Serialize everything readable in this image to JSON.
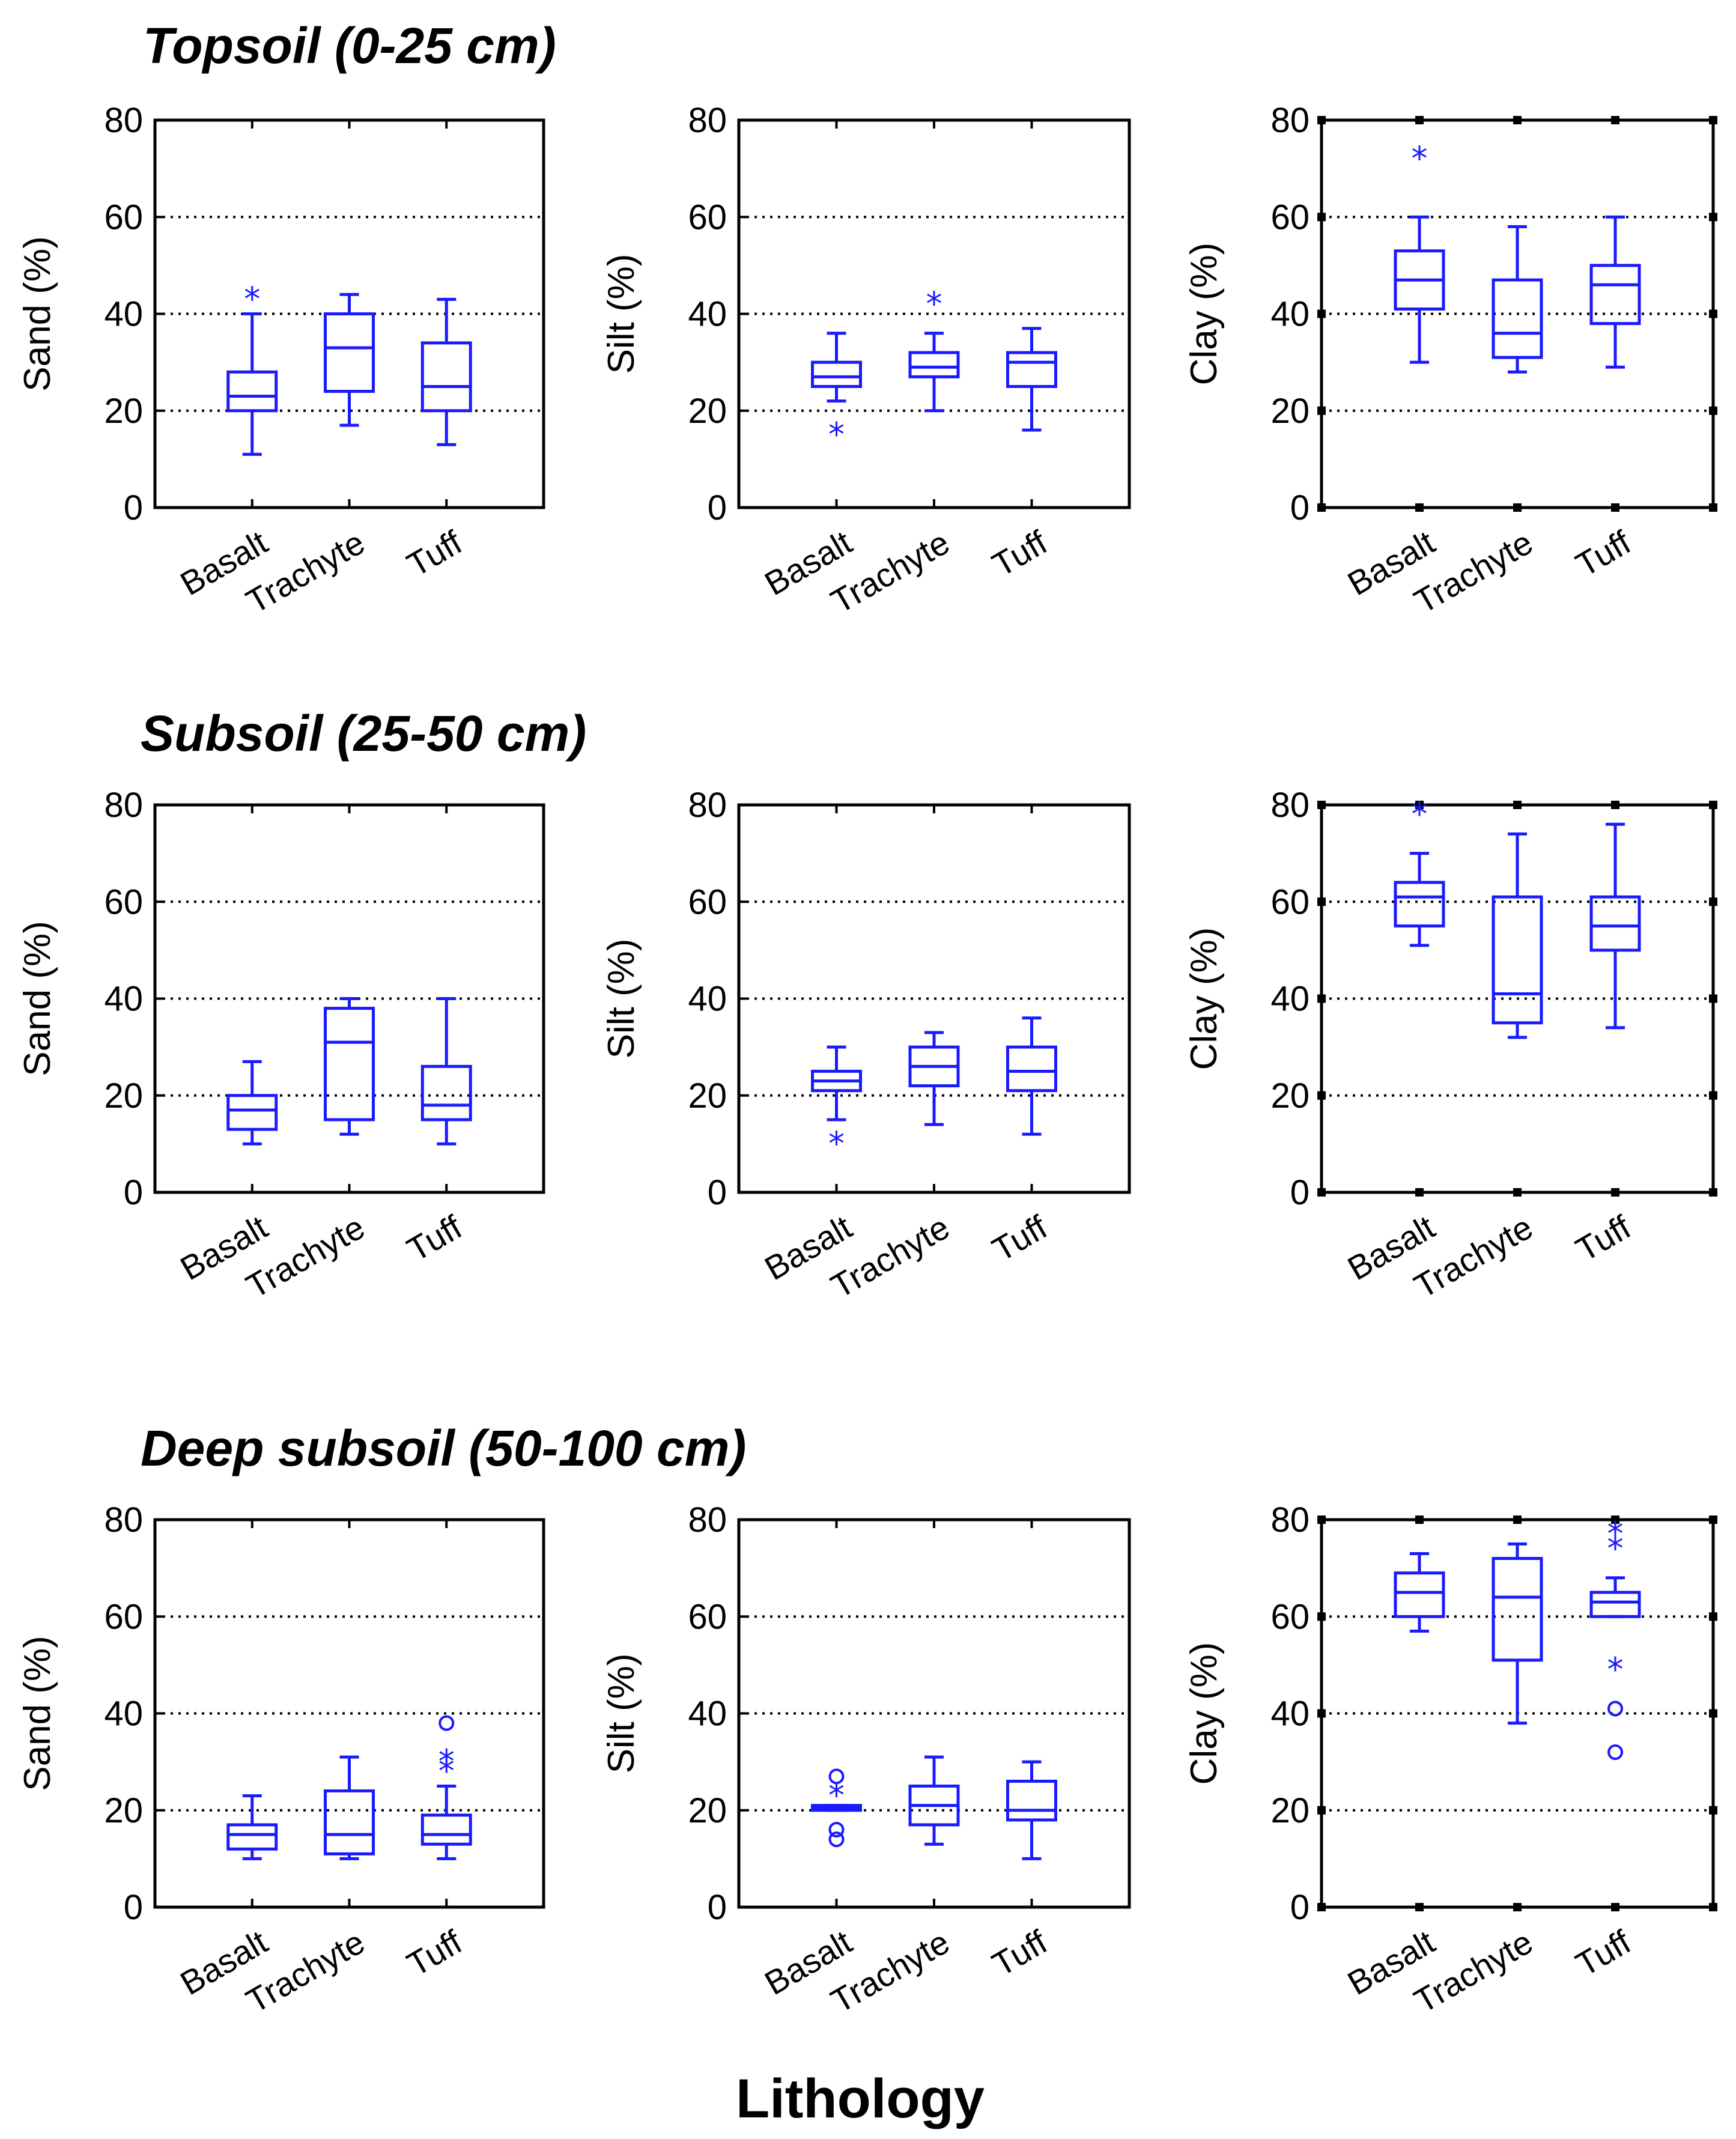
{
  "figure": {
    "x_axis_title": "Lithology",
    "sections": [
      {
        "title": "Topsoil (0-25 cm)"
      },
      {
        "title": "Subsoil (25-50 cm)"
      },
      {
        "title": "Deep subsoil (50-100 cm)"
      }
    ]
  },
  "chart_data": [
    {
      "type": "box",
      "section": "Topsoil (0-25 cm)",
      "ylabel": "Sand (%)",
      "ylim": [
        0,
        80
      ],
      "yticks": [
        0,
        20,
        40,
        60,
        80
      ],
      "grid": "dotted",
      "categories": [
        "Basalt",
        "Trachyte",
        "Tuff"
      ],
      "boxes": [
        {
          "min": 11,
          "q1": 20,
          "median": 23,
          "q3": 28,
          "max": 40,
          "outliers": [
            {
              "v": 44,
              "m": "*"
            }
          ]
        },
        {
          "min": 17,
          "q1": 24,
          "median": 33,
          "q3": 40,
          "max": 44,
          "outliers": []
        },
        {
          "min": 13,
          "q1": 20,
          "median": 25,
          "q3": 34,
          "max": 43,
          "outliers": []
        }
      ]
    },
    {
      "type": "box",
      "section": "Topsoil (0-25 cm)",
      "ylabel": "Silt (%)",
      "ylim": [
        0,
        80
      ],
      "yticks": [
        0,
        20,
        40,
        60,
        80
      ],
      "grid": "dotted",
      "categories": [
        "Basalt",
        "Trachyte",
        "Tuff"
      ],
      "boxes": [
        {
          "min": 22,
          "q1": 25,
          "median": 27,
          "q3": 30,
          "max": 36,
          "outliers": [
            {
              "v": 16,
              "m": "*"
            }
          ]
        },
        {
          "min": 20,
          "q1": 27,
          "median": 29,
          "q3": 32,
          "max": 36,
          "outliers": [
            {
              "v": 43,
              "m": "*"
            }
          ]
        },
        {
          "min": 16,
          "q1": 25,
          "median": 30,
          "q3": 32,
          "max": 37,
          "outliers": []
        }
      ]
    },
    {
      "type": "box",
      "section": "Topsoil (0-25 cm)",
      "ylabel": "Clay (%)",
      "ylim": [
        0,
        80
      ],
      "yticks": [
        0,
        20,
        40,
        60,
        80
      ],
      "grid": "dotted",
      "categories": [
        "Basalt",
        "Trachyte",
        "Tuff"
      ],
      "boxes": [
        {
          "min": 30,
          "q1": 41,
          "median": 47,
          "q3": 53,
          "max": 60,
          "outliers": [
            {
              "v": 73,
              "m": "*"
            }
          ]
        },
        {
          "min": 28,
          "q1": 31,
          "median": 36,
          "q3": 47,
          "max": 58,
          "outliers": []
        },
        {
          "min": 29,
          "q1": 38,
          "median": 46,
          "q3": 50,
          "max": 60,
          "outliers": []
        }
      ]
    },
    {
      "type": "box",
      "section": "Subsoil (25-50 cm)",
      "ylabel": "Sand (%)",
      "ylim": [
        0,
        80
      ],
      "yticks": [
        0,
        20,
        40,
        60,
        80
      ],
      "grid": "dotted",
      "categories": [
        "Basalt",
        "Trachyte",
        "Tuff"
      ],
      "boxes": [
        {
          "min": 10,
          "q1": 13,
          "median": 17,
          "q3": 20,
          "max": 27,
          "outliers": []
        },
        {
          "min": 12,
          "q1": 15,
          "median": 31,
          "q3": 38,
          "max": 40,
          "outliers": []
        },
        {
          "min": 10,
          "q1": 15,
          "median": 18,
          "q3": 26,
          "max": 40,
          "outliers": []
        }
      ]
    },
    {
      "type": "box",
      "section": "Subsoil (25-50 cm)",
      "ylabel": "Silt (%)",
      "ylim": [
        0,
        80
      ],
      "yticks": [
        0,
        20,
        40,
        60,
        80
      ],
      "grid": "dotted",
      "categories": [
        "Basalt",
        "Trachyte",
        "Tuff"
      ],
      "boxes": [
        {
          "min": 15,
          "q1": 21,
          "median": 23,
          "q3": 25,
          "max": 30,
          "outliers": [
            {
              "v": 11,
              "m": "*"
            }
          ]
        },
        {
          "min": 14,
          "q1": 22,
          "median": 26,
          "q3": 30,
          "max": 33,
          "outliers": []
        },
        {
          "min": 12,
          "q1": 21,
          "median": 25,
          "q3": 30,
          "max": 36,
          "outliers": []
        }
      ]
    },
    {
      "type": "box",
      "section": "Subsoil (25-50 cm)",
      "ylabel": "Clay (%)",
      "ylim": [
        0,
        80
      ],
      "yticks": [
        0,
        20,
        40,
        60,
        80
      ],
      "grid": "dotted",
      "categories": [
        "Basalt",
        "Trachyte",
        "Tuff"
      ],
      "boxes": [
        {
          "min": 51,
          "q1": 55,
          "median": 61,
          "q3": 64,
          "max": 70,
          "outliers": [
            {
              "v": 79,
              "m": "*"
            }
          ]
        },
        {
          "min": 32,
          "q1": 35,
          "median": 41,
          "q3": 61,
          "max": 74,
          "outliers": []
        },
        {
          "min": 34,
          "q1": 50,
          "median": 55,
          "q3": 61,
          "max": 76,
          "outliers": []
        }
      ]
    },
    {
      "type": "box",
      "section": "Deep subsoil (50-100 cm)",
      "ylabel": "Sand (%)",
      "ylim": [
        0,
        80
      ],
      "yticks": [
        0,
        20,
        40,
        60,
        80
      ],
      "grid": "dotted",
      "categories": [
        "Basalt",
        "Trachyte",
        "Tuff"
      ],
      "boxes": [
        {
          "min": 10,
          "q1": 12,
          "median": 15,
          "q3": 17,
          "max": 23,
          "outliers": []
        },
        {
          "min": 10,
          "q1": 11,
          "median": 15,
          "q3": 24,
          "max": 31,
          "outliers": []
        },
        {
          "min": 10,
          "q1": 13,
          "median": 15,
          "q3": 19,
          "max": 25,
          "outliers": [
            {
              "v": 29,
              "m": "*"
            },
            {
              "v": 31,
              "m": "*"
            },
            {
              "v": 38,
              "m": "o"
            }
          ]
        }
      ]
    },
    {
      "type": "box",
      "section": "Deep subsoil (50-100 cm)",
      "ylabel": "Silt (%)",
      "ylim": [
        0,
        80
      ],
      "yticks": [
        0,
        20,
        40,
        60,
        80
      ],
      "grid": "dotted",
      "categories": [
        "Basalt",
        "Trachyte",
        "Tuff"
      ],
      "boxes": [
        {
          "min": 20,
          "q1": 20,
          "median": 20.5,
          "q3": 21,
          "max": 21,
          "outliers": [
            {
              "v": 14,
              "m": "o"
            },
            {
              "v": 16,
              "m": "o"
            },
            {
              "v": 24,
              "m": "*"
            },
            {
              "v": 27,
              "m": "o"
            }
          ]
        },
        {
          "min": 13,
          "q1": 17,
          "median": 21,
          "q3": 25,
          "max": 31,
          "outliers": []
        },
        {
          "min": 10,
          "q1": 18,
          "median": 20,
          "q3": 26,
          "max": 30,
          "outliers": []
        }
      ]
    },
    {
      "type": "box",
      "section": "Deep subsoil (50-100 cm)",
      "ylabel": "Clay (%)",
      "ylim": [
        0,
        80
      ],
      "yticks": [
        0,
        20,
        40,
        60,
        80
      ],
      "grid": "dotted",
      "categories": [
        "Basalt",
        "Trachyte",
        "Tuff"
      ],
      "boxes": [
        {
          "min": 57,
          "q1": 60,
          "median": 65,
          "q3": 69,
          "max": 73,
          "outliers": []
        },
        {
          "min": 38,
          "q1": 51,
          "median": 64,
          "q3": 72,
          "max": 75,
          "outliers": []
        },
        {
          "min": 60,
          "q1": 60,
          "median": 63,
          "q3": 65,
          "max": 68,
          "outliers": [
            {
              "v": 32,
              "m": "o"
            },
            {
              "v": 41,
              "m": "o"
            },
            {
              "v": 50,
              "m": "*"
            },
            {
              "v": 75,
              "m": "*"
            },
            {
              "v": 78,
              "m": "*"
            }
          ]
        }
      ]
    }
  ]
}
